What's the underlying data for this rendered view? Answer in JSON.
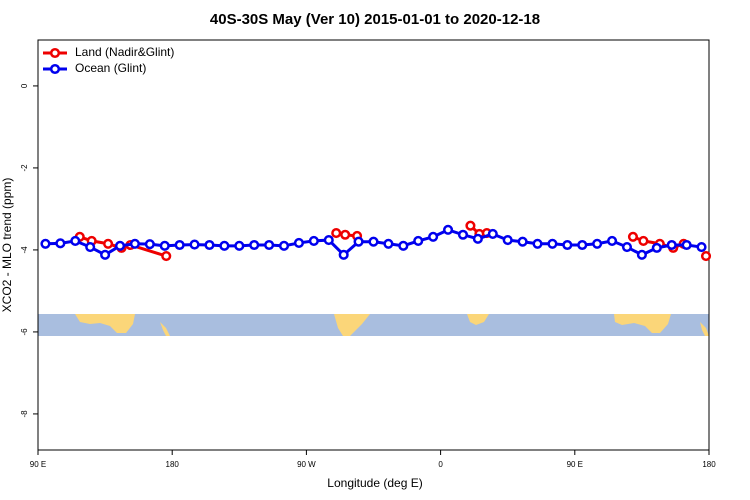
{
  "chart_data": {
    "type": "line",
    "title": "40S-30S May (Ver 10)   2015-01-01 to 2020-12-18",
    "x_label": "Longitude (deg E)",
    "y_label": "XCO2 - MLO trend (ppm)",
    "xlim": [
      90,
      540
    ],
    "ylim": [
      -8.88,
      1.12
    ],
    "xticks": [
      {
        "value": 90,
        "label": "90 E"
      },
      180,
      {
        "value": 270,
        "label": "90 W"
      },
      {
        "value": 360,
        "label": "0"
      },
      {
        "value": 450,
        "label": "90 E"
      },
      {
        "value": 540,
        "label": "180"
      }
    ],
    "yticks": [
      0,
      -2,
      -4,
      -6,
      -8
    ],
    "legend": "top-left",
    "series": [
      {
        "name": "Land (Nadir&Glint)",
        "color": "#ee0000",
        "x": [
          118,
          126,
          137,
          146,
          152,
          176,
          240,
          290,
          296,
          304,
          340,
          380,
          386,
          391,
          450,
          489,
          496,
          507,
          516,
          523,
          530,
          538
        ],
        "values": [
          -3.68,
          -3.78,
          -3.85,
          -3.95,
          -3.88,
          -4.15,
          null,
          -3.59,
          -3.63,
          -3.66,
          null,
          -3.41,
          -3.61,
          -3.59,
          null,
          -3.68,
          -3.78,
          -3.85,
          -3.95,
          -3.85,
          null,
          -4.15
        ]
      },
      {
        "name": "Ocean (Glint)",
        "color": "#0000ee",
        "x": [
          95,
          105,
          115,
          125,
          135,
          145,
          155,
          165,
          175,
          185,
          195,
          205,
          215,
          225,
          235,
          245,
          255,
          265,
          275,
          285,
          295,
          305,
          315,
          325,
          335,
          345,
          355,
          365,
          375,
          385,
          395,
          405,
          415,
          425,
          435,
          445,
          455,
          465,
          475,
          485,
          495,
          505,
          515,
          525,
          535
        ],
        "values": [
          -3.85,
          -3.84,
          -3.78,
          -3.93,
          -4.12,
          -3.9,
          -3.85,
          -3.86,
          -3.9,
          -3.88,
          -3.87,
          -3.88,
          -3.9,
          -3.9,
          -3.88,
          -3.88,
          -3.9,
          -3.83,
          -3.78,
          -3.76,
          -4.12,
          -3.8,
          -3.8,
          -3.85,
          -3.9,
          -3.78,
          -3.68,
          -3.51,
          -3.63,
          -3.73,
          -3.61,
          -3.76,
          -3.8,
          -3.85,
          -3.85,
          -3.88,
          -3.88,
          -3.85,
          -3.78,
          -3.93,
          -4.12,
          -3.95,
          -3.88,
          -3.88,
          -3.93
        ]
      }
    ]
  }
}
